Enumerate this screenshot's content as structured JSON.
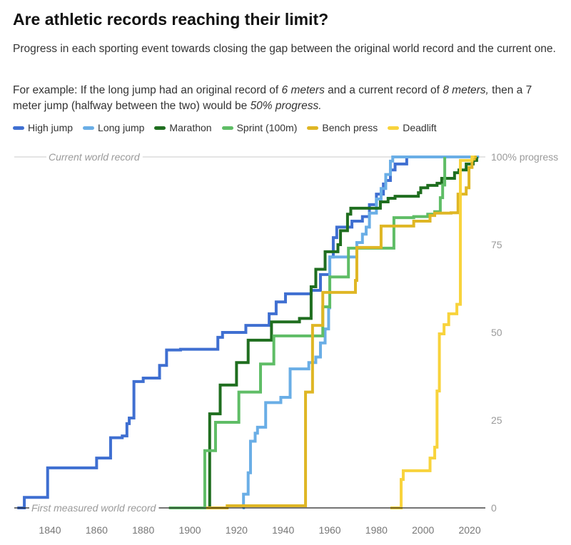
{
  "title": "Are athletic records reaching their limit?",
  "subtitle": "Progress in each sporting event towards closing the gap between the original world record and the current one.",
  "example": {
    "before": "For example: If the long jump had an original record of ",
    "em1": "6 meters",
    "mid1": " and a current record of ",
    "em2": "8 meters,",
    "mid2": " then a 7 meter jump (halfway between the two) would be ",
    "em3": "50% progress."
  },
  "chart_data": {
    "type": "line",
    "step": "after",
    "title": "",
    "xlabel": "",
    "ylabel": "",
    "xlim": [
      1826,
      2030
    ],
    "ylim": [
      0,
      100
    ],
    "x_ticks": [
      1840,
      1860,
      1880,
      1900,
      1920,
      1940,
      1960,
      1980,
      2000,
      2020
    ],
    "y_ticks": [
      {
        "value": 100,
        "label": "100% progress"
      },
      {
        "value": 75,
        "label": "75"
      },
      {
        "value": 50,
        "label": "50"
      },
      {
        "value": 25,
        "label": "25"
      },
      {
        "value": 0,
        "label": "0"
      }
    ],
    "annotations": {
      "top": "Current world record",
      "bottom": "First measured world record"
    },
    "legend_position": "top",
    "series": [
      {
        "name": "High jump",
        "color": "#3f6fd1",
        "points": [
          [
            1826,
            0
          ],
          [
            1829,
            3
          ],
          [
            1839,
            11.4
          ],
          [
            1860,
            14.2
          ],
          [
            1866,
            20
          ],
          [
            1871,
            20.5
          ],
          [
            1873,
            24
          ],
          [
            1874,
            25.6
          ],
          [
            1876,
            36
          ],
          [
            1880,
            37
          ],
          [
            1887,
            40.6
          ],
          [
            1890,
            45
          ],
          [
            1896,
            45.2
          ],
          [
            1912,
            48.6
          ],
          [
            1914,
            50
          ],
          [
            1924,
            52
          ],
          [
            1934,
            55.3
          ],
          [
            1937,
            58.7
          ],
          [
            1941,
            61
          ],
          [
            1952,
            62
          ],
          [
            1956,
            66.5
          ],
          [
            1960,
            71.5
          ],
          [
            1961.5,
            77
          ],
          [
            1963,
            80
          ],
          [
            1969.5,
            81.7
          ],
          [
            1974,
            83
          ],
          [
            1977,
            86.4
          ],
          [
            1980,
            89.4
          ],
          [
            1983,
            92.3
          ],
          [
            1984,
            93.3
          ],
          [
            1986,
            96.3
          ],
          [
            1988,
            98
          ],
          [
            1993,
            100
          ],
          [
            2024,
            100
          ]
        ]
      },
      {
        "name": "Long jump",
        "color": "#6aaee6",
        "points": [
          [
            1922.6,
            0
          ],
          [
            1923,
            3.9
          ],
          [
            1925,
            10
          ],
          [
            1926,
            19
          ],
          [
            1928,
            21.3
          ],
          [
            1929,
            23
          ],
          [
            1932.5,
            30
          ],
          [
            1939,
            31.5
          ],
          [
            1943,
            39.6
          ],
          [
            1951,
            41.4
          ],
          [
            1954,
            43
          ],
          [
            1956,
            47
          ],
          [
            1958,
            51
          ],
          [
            1959.5,
            57
          ],
          [
            1960,
            71.5
          ],
          [
            1971.6,
            75.6
          ],
          [
            1974,
            78
          ],
          [
            1975.6,
            80
          ],
          [
            1977,
            84
          ],
          [
            1980,
            88
          ],
          [
            1982,
            91
          ],
          [
            1984,
            95
          ],
          [
            1986,
            98.8
          ],
          [
            1987,
            100
          ],
          [
            2024,
            100
          ]
        ]
      },
      {
        "name": "Marathon",
        "color": "#1f6e1f",
        "points": [
          [
            1908.3,
            0
          ],
          [
            1908.5,
            26.8
          ],
          [
            1913,
            35
          ],
          [
            1920,
            41.4
          ],
          [
            1925,
            47.8
          ],
          [
            1935,
            53
          ],
          [
            1947,
            54
          ],
          [
            1952,
            63
          ],
          [
            1954,
            68
          ],
          [
            1958,
            73
          ],
          [
            1963.5,
            75
          ],
          [
            1964.6,
            79
          ],
          [
            1967.6,
            83.7
          ],
          [
            1969,
            85.4
          ],
          [
            1981.7,
            87.2
          ],
          [
            1985,
            88.2
          ],
          [
            1988,
            88.8
          ],
          [
            1998,
            89.8
          ],
          [
            1999,
            91.2
          ],
          [
            2002,
            91.9
          ],
          [
            2006,
            92.5
          ],
          [
            2008,
            93.9
          ],
          [
            2013.5,
            95.5
          ],
          [
            2015.4,
            96.3
          ],
          [
            2018.5,
            98
          ],
          [
            2021.5,
            99
          ],
          [
            2023,
            100
          ]
        ]
      },
      {
        "name": "Sprint (100m)",
        "color": "#5fbd66",
        "points": [
          [
            1891,
            0
          ],
          [
            1906.4,
            16.3
          ],
          [
            1911,
            24.4
          ],
          [
            1921,
            33
          ],
          [
            1930.3,
            41
          ],
          [
            1936,
            49
          ],
          [
            1957,
            57.3
          ],
          [
            1960,
            65.8
          ],
          [
            1968,
            74
          ],
          [
            1987.5,
            82.7
          ],
          [
            1996,
            83
          ],
          [
            2002,
            83.7
          ],
          [
            2005,
            84.4
          ],
          [
            2007.4,
            88.4
          ],
          [
            2008.4,
            92
          ],
          [
            2009.3,
            100
          ]
        ]
      },
      {
        "name": "Bench press",
        "color": "#dfb624",
        "points": [
          [
            1907,
            0
          ],
          [
            1916,
            0.6
          ],
          [
            1949.6,
            33
          ],
          [
            1952.6,
            52
          ],
          [
            1957,
            61.4
          ],
          [
            1971,
            64.8
          ],
          [
            1971.6,
            74.2
          ],
          [
            1982,
            80.3
          ],
          [
            1996,
            81.7
          ],
          [
            2003,
            83.3
          ],
          [
            2005,
            84
          ],
          [
            2012,
            84.1
          ],
          [
            2015,
            89.4
          ],
          [
            2018.5,
            91.2
          ],
          [
            2019.7,
            97
          ],
          [
            2021,
            99.4
          ],
          [
            2022,
            100
          ],
          [
            2023,
            100
          ]
        ]
      },
      {
        "name": "Deadlift",
        "color": "#f8d33c",
        "points": [
          [
            1986,
            0
          ],
          [
            1990.6,
            8.1
          ],
          [
            1991.5,
            10.6
          ],
          [
            2003,
            14.2
          ],
          [
            2005,
            17.3
          ],
          [
            2006,
            33.3
          ],
          [
            2007,
            49.6
          ],
          [
            2009,
            52.2
          ],
          [
            2011,
            55.3
          ],
          [
            2014.5,
            58
          ],
          [
            2016,
            99
          ],
          [
            2021,
            100
          ],
          [
            2022,
            100
          ]
        ]
      }
    ]
  }
}
